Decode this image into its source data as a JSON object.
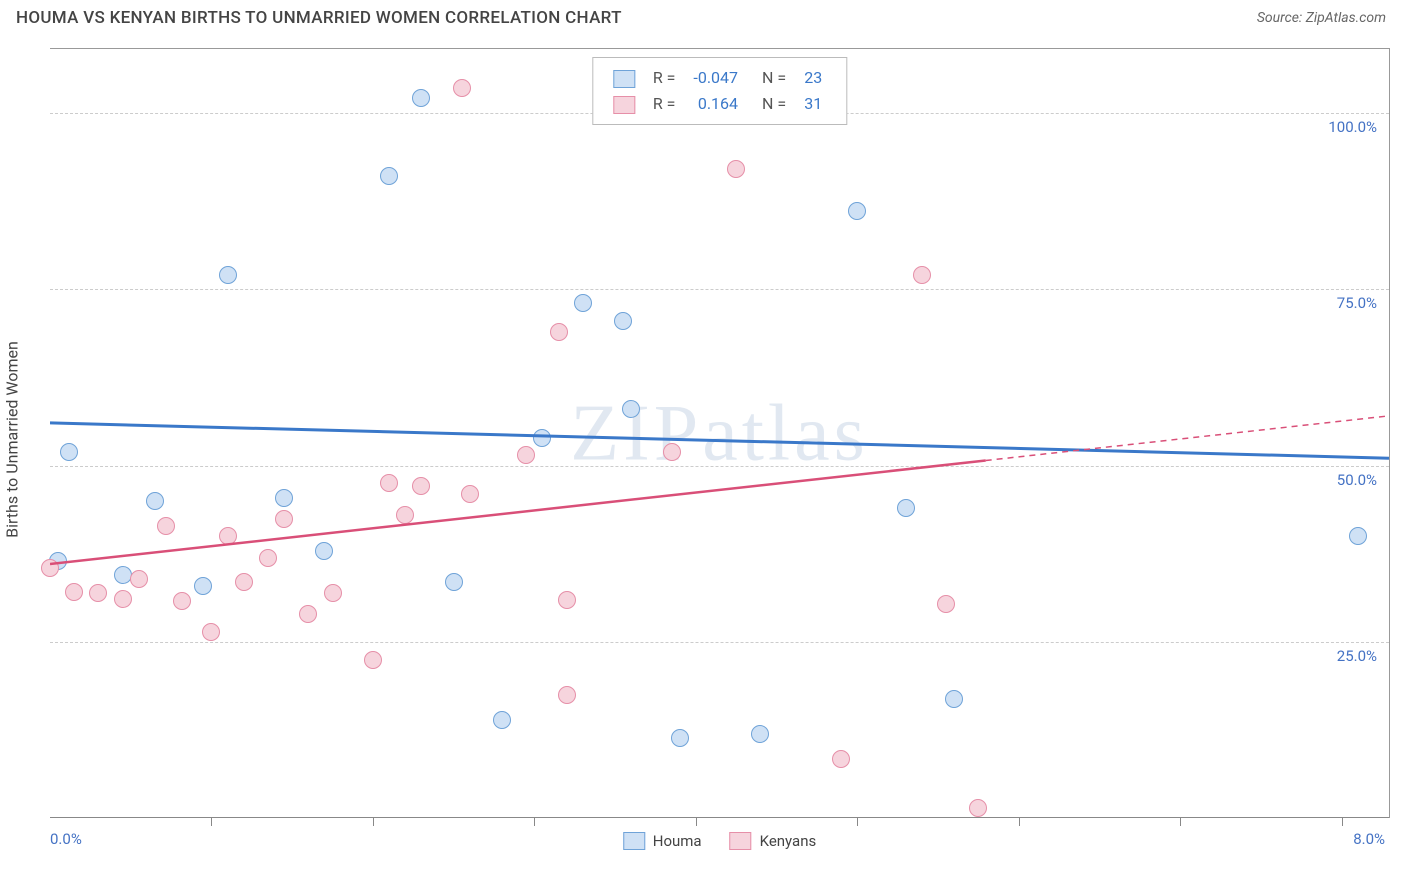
{
  "title": "HOUMA VS KENYAN BIRTHS TO UNMARRIED WOMEN CORRELATION CHART",
  "source": "Source: ZipAtlas.com",
  "watermark": "ZIPatlas",
  "y_axis": {
    "label": "Births to Unmarried Women",
    "min": 0,
    "max": 109,
    "ticks": [
      25,
      50,
      75,
      100
    ],
    "tick_labels": [
      "25.0%",
      "50.0%",
      "75.0%",
      "100.0%"
    ],
    "label_color": "#4472c4"
  },
  "x_axis": {
    "min": 0,
    "max": 8.3,
    "ticks": [
      1,
      2,
      3,
      4,
      5,
      6,
      7,
      8
    ],
    "labels": {
      "left": "0.0%",
      "right": "8.0%"
    },
    "label_color": "#4472c4"
  },
  "series": [
    {
      "name": "Houma",
      "fill": "#cfe1f5",
      "stroke": "#6fa3d8",
      "R": "-0.047",
      "N": "23",
      "trend": {
        "y_at_xmin": 56,
        "y_at_xmax": 51,
        "color": "#3a78c9",
        "width": 3,
        "dash_after_x": null
      },
      "points": [
        [
          0.05,
          36.5
        ],
        [
          0.12,
          52
        ],
        [
          0.45,
          34.5
        ],
        [
          0.65,
          45
        ],
        [
          0.95,
          33
        ],
        [
          1.1,
          77
        ],
        [
          1.45,
          45.5
        ],
        [
          1.7,
          38
        ],
        [
          2.1,
          91
        ],
        [
          2.3,
          102
        ],
        [
          2.5,
          33.5
        ],
        [
          2.8,
          14
        ],
        [
          3.05,
          54
        ],
        [
          3.3,
          73
        ],
        [
          3.55,
          70.5
        ],
        [
          3.6,
          58
        ],
        [
          3.65,
          103
        ],
        [
          3.9,
          11.5
        ],
        [
          4.4,
          12
        ],
        [
          5.0,
          86
        ],
        [
          5.3,
          44
        ],
        [
          5.6,
          17
        ],
        [
          8.1,
          40
        ]
      ]
    },
    {
      "name": "Kenyans",
      "fill": "#f6d4dd",
      "stroke": "#e68fa8",
      "R": "0.164",
      "N": "31",
      "trend": {
        "y_at_xmin": 36,
        "y_at_xmax": 57,
        "color": "#d94f78",
        "width": 2.5,
        "dash_after_x": 5.8
      },
      "points": [
        [
          0.0,
          35.5
        ],
        [
          0.15,
          32.2
        ],
        [
          0.3,
          32
        ],
        [
          0.45,
          31.2
        ],
        [
          0.55,
          34
        ],
        [
          0.72,
          41.5
        ],
        [
          0.82,
          30.8
        ],
        [
          1.0,
          26.5
        ],
        [
          1.1,
          40
        ],
        [
          1.2,
          33.5
        ],
        [
          1.35,
          37
        ],
        [
          1.45,
          42.5
        ],
        [
          1.6,
          29
        ],
        [
          1.75,
          32
        ],
        [
          2.0,
          22.5
        ],
        [
          2.1,
          47.5
        ],
        [
          2.2,
          43
        ],
        [
          2.3,
          47.2
        ],
        [
          2.55,
          103.5
        ],
        [
          2.6,
          46
        ],
        [
          2.95,
          51.5
        ],
        [
          3.15,
          69
        ],
        [
          3.2,
          31
        ],
        [
          3.2,
          17.5
        ],
        [
          3.55,
          103.5
        ],
        [
          3.85,
          52
        ],
        [
          4.25,
          92
        ],
        [
          4.9,
          8.5
        ],
        [
          5.4,
          77
        ],
        [
          5.55,
          30.5
        ],
        [
          5.75,
          1.5
        ]
      ]
    }
  ],
  "legend_stats": {
    "value_color": "#3a78c9",
    "label_color": "#555555"
  }
}
